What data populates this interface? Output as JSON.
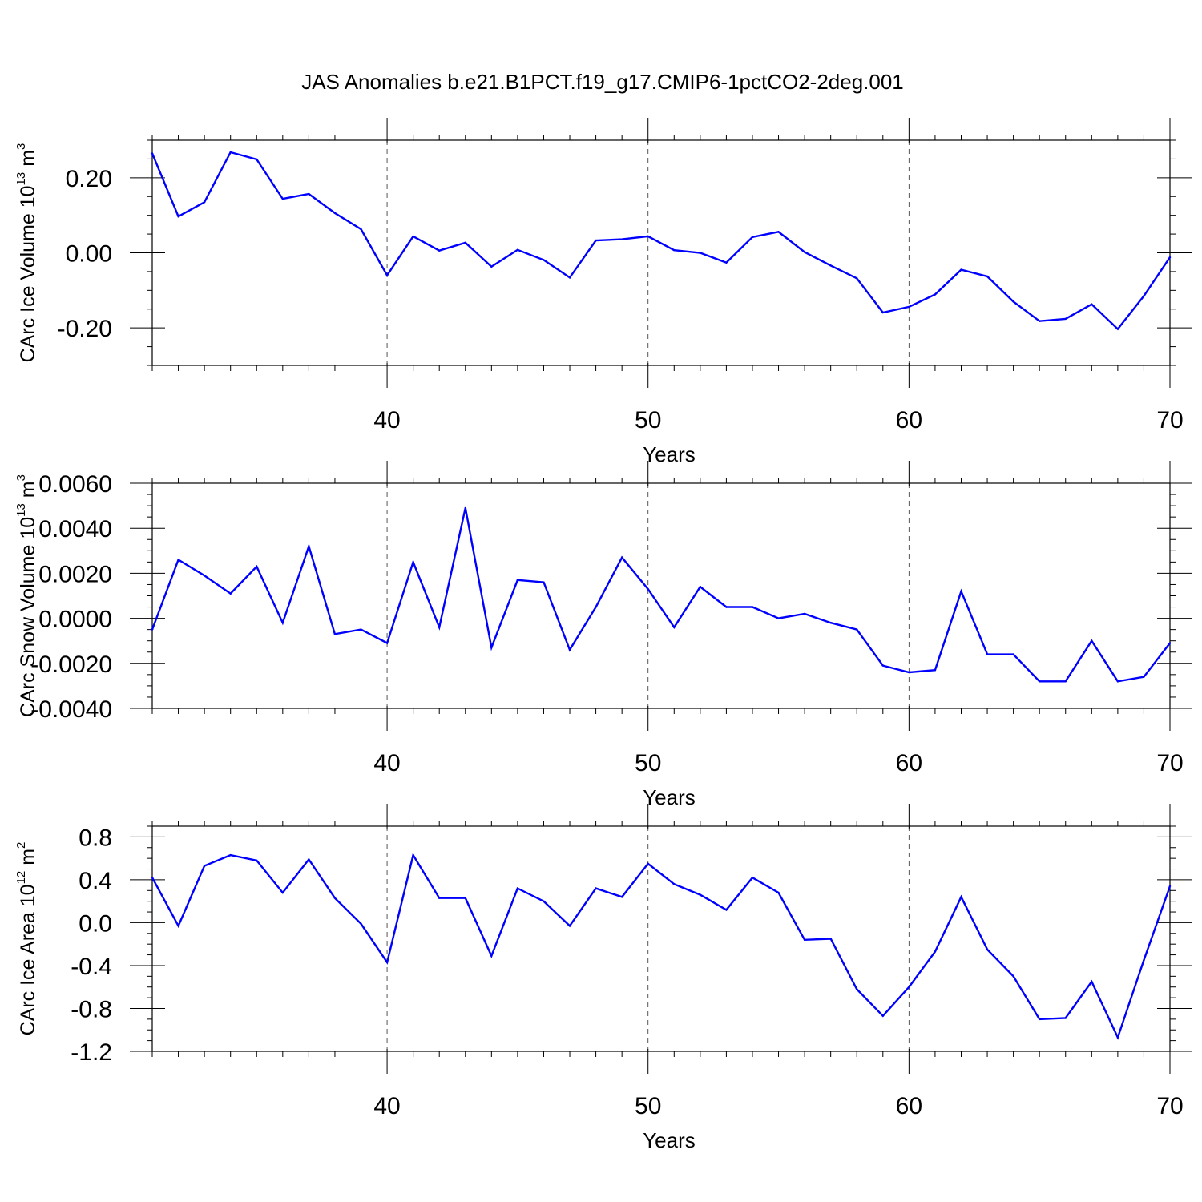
{
  "title": "JAS Anomalies b.e21.B1PCT.f19_g17.CMIP6-1pctCO2-2deg.001",
  "chart_data": [
    {
      "type": "line",
      "xlabel": "Years",
      "ylabel": {
        "prefix": "CArc Ice Volume 10",
        "sup": "13",
        "mid": " m",
        "sup2": "3"
      },
      "xlim": [
        31,
        70
      ],
      "ylim": [
        -0.3,
        0.3
      ],
      "xticks": [
        40,
        50,
        60,
        70
      ],
      "yticks": [
        -0.2,
        0.0,
        0.2
      ],
      "ytick_labels": [
        "-0.20",
        "0.00",
        "0.20"
      ],
      "y_minor_step": 0.05,
      "series": [
        {
          "name": "CArc Ice Volume",
          "color": "#0000ff",
          "x": [
            31,
            32,
            33,
            34,
            35,
            36,
            37,
            38,
            39,
            40,
            41,
            42,
            43,
            44,
            45,
            46,
            47,
            48,
            49,
            50,
            51,
            52,
            53,
            54,
            55,
            56,
            57,
            58,
            59,
            60,
            61,
            62,
            63,
            64,
            65,
            66,
            67,
            68,
            69,
            70
          ],
          "values": [
            0.265,
            0.097,
            0.135,
            0.268,
            0.249,
            0.144,
            0.157,
            0.106,
            0.063,
            -0.06,
            0.044,
            0.006,
            0.027,
            -0.037,
            0.008,
            -0.019,
            -0.066,
            0.033,
            0.036,
            0.044,
            0.007,
            0.0,
            -0.026,
            0.042,
            0.056,
            0.002,
            -0.034,
            -0.068,
            -0.159,
            -0.144,
            -0.111,
            -0.045,
            -0.063,
            -0.13,
            -0.182,
            -0.176,
            -0.137,
            -0.203,
            -0.115,
            -0.012
          ]
        }
      ]
    },
    {
      "type": "line",
      "xlabel": "Years",
      "ylabel": {
        "prefix": "CArc Snow Volume 10",
        "sup": "13",
        "mid": " m",
        "sup2": "3"
      },
      "xlim": [
        31,
        70
      ],
      "ylim": [
        -0.004,
        0.006
      ],
      "xticks": [
        40,
        50,
        60,
        70
      ],
      "yticks": [
        -0.004,
        -0.002,
        0.0,
        0.002,
        0.004,
        0.006
      ],
      "ytick_labels": [
        "-0.0040",
        "-0.0020",
        "0.0000",
        "0.0020",
        "0.0040",
        "0.0060"
      ],
      "y_minor_step": 0.0005,
      "series": [
        {
          "name": "CArc Snow Volume",
          "color": "#0000ff",
          "x": [
            31,
            32,
            33,
            34,
            35,
            36,
            37,
            38,
            39,
            40,
            41,
            42,
            43,
            44,
            45,
            46,
            47,
            48,
            49,
            50,
            51,
            52,
            53,
            54,
            55,
            56,
            57,
            58,
            59,
            60,
            61,
            62,
            63,
            64,
            65,
            66,
            67,
            68,
            69,
            70
          ],
          "values": [
            -0.0005,
            0.0026,
            0.0019,
            0.0011,
            0.0023,
            -0.0002,
            0.0032,
            -0.0007,
            -0.0005,
            -0.0011,
            0.0025,
            -0.0004,
            0.0049,
            -0.0013,
            0.0017,
            0.0016,
            -0.0014,
            0.0005,
            0.0027,
            0.0013,
            -0.0004,
            0.0014,
            0.0005,
            0.0005,
            0.0,
            0.0002,
            -0.0002,
            -0.0005,
            -0.0021,
            -0.0024,
            -0.0023,
            0.0012,
            -0.0016,
            -0.0016,
            -0.0028,
            -0.0028,
            -0.001,
            -0.0028,
            -0.0026,
            -0.0011
          ]
        }
      ]
    },
    {
      "type": "line",
      "xlabel": "Years",
      "ylabel": {
        "prefix": "CArc Ice Area 10",
        "sup": "12",
        "mid": " m",
        "sup2": "2"
      },
      "xlim": [
        31,
        70
      ],
      "ylim": [
        -1.2,
        0.9
      ],
      "xticks": [
        40,
        50,
        60,
        70
      ],
      "yticks": [
        -1.2,
        -0.8,
        -0.4,
        0.0,
        0.4,
        0.8
      ],
      "ytick_labels": [
        "-1.2",
        "-0.8",
        "-0.4",
        "0.0",
        "0.4",
        "0.8"
      ],
      "y_minor_step": 0.1,
      "series": [
        {
          "name": "CArc Ice Area",
          "color": "#0000ff",
          "x": [
            31,
            32,
            33,
            34,
            35,
            36,
            37,
            38,
            39,
            40,
            41,
            42,
            43,
            44,
            45,
            46,
            47,
            48,
            49,
            50,
            51,
            52,
            53,
            54,
            55,
            56,
            57,
            58,
            59,
            60,
            61,
            62,
            63,
            64,
            65,
            66,
            67,
            68,
            69,
            70
          ],
          "values": [
            0.42,
            -0.03,
            0.53,
            0.63,
            0.58,
            0.28,
            0.59,
            0.23,
            -0.01,
            -0.37,
            0.63,
            0.23,
            0.23,
            -0.31,
            0.32,
            0.2,
            -0.03,
            0.32,
            0.24,
            0.55,
            0.36,
            0.26,
            0.12,
            0.42,
            0.28,
            -0.16,
            -0.15,
            -0.62,
            -0.87,
            -0.6,
            -0.27,
            0.24,
            -0.25,
            -0.5,
            -0.9,
            -0.89,
            -0.55,
            -1.07,
            -0.35,
            0.34
          ]
        }
      ]
    }
  ]
}
